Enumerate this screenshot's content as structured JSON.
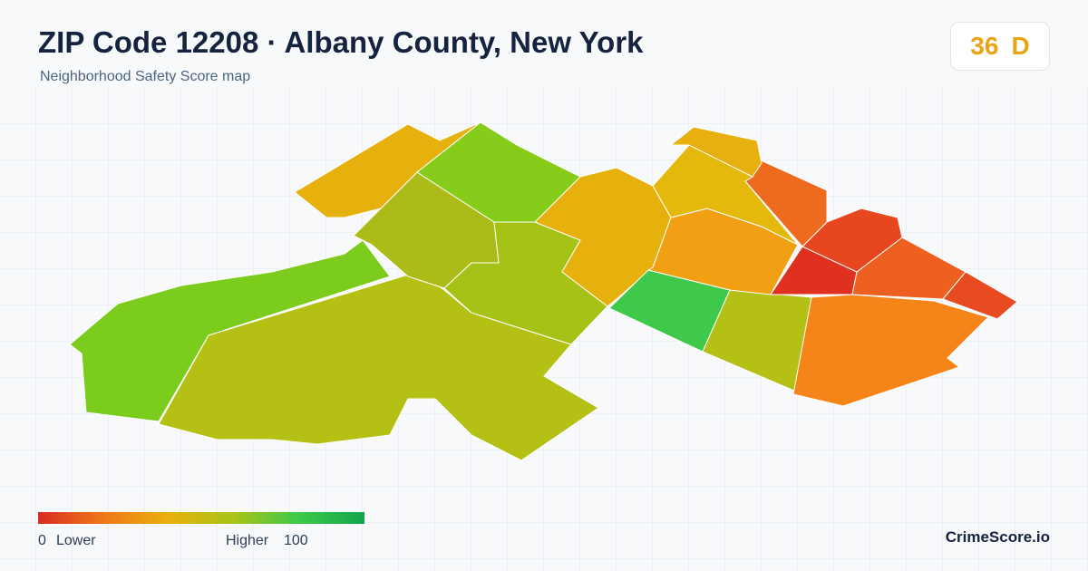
{
  "header": {
    "title": "ZIP Code 12208 · Albany County, New York",
    "subtitle": "Neighborhood Safety Score map"
  },
  "score": {
    "value": 36,
    "grade": "D"
  },
  "legend": {
    "min_value": 0,
    "min_label": "Lower",
    "max_label": "Higher",
    "max_value": 100
  },
  "footer": {
    "brand": "CrimeScore.io"
  }
}
